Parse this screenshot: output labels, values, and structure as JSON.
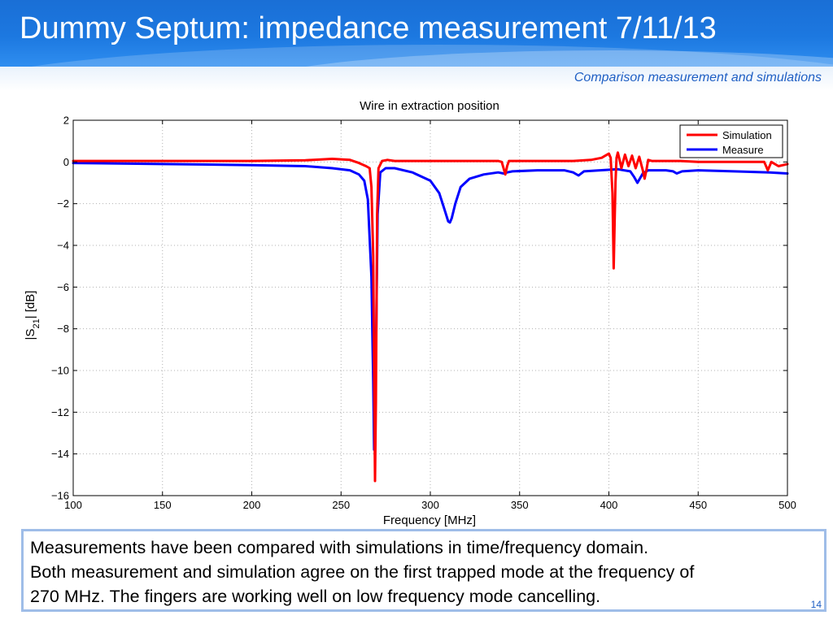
{
  "slide": {
    "title": "Dummy Septum: impedance measurement 7/11/13",
    "subtitle": "Comparison measurement and simulations",
    "text_lines": [
      "Measurements have been compared with simulations in time/frequency domain.",
      "Both measurement and simulation agree on the first trapped mode at the frequency of",
      "270 MHz. The fingers are working well on low frequency mode cancelling."
    ],
    "page_number": "14"
  },
  "colors": {
    "header_blue": "#1c78e0",
    "accent_text": "#1f5fc4",
    "simulation": "#ff0000",
    "measure": "#0000ff"
  },
  "chart_data": {
    "type": "line",
    "title": "Wire in extraction position",
    "xlabel": "Frequency [MHz]",
    "ylabel_main": "|S",
    "ylabel_sub": "21",
    "ylabel_tail": "| [dB]",
    "xlim": [
      100,
      500
    ],
    "ylim": [
      -16,
      2
    ],
    "xticks": [
      100,
      150,
      200,
      250,
      300,
      350,
      400,
      450,
      500
    ],
    "yticks": [
      2,
      0,
      -2,
      -4,
      -6,
      -8,
      -10,
      -12,
      -14,
      -16
    ],
    "ytick_labels": [
      "2",
      "0",
      "−2",
      "−4",
      "−6",
      "−8",
      "−10",
      "−12",
      "−14",
      "−16"
    ],
    "grid": true,
    "legend_position": "top-right",
    "series": [
      {
        "name": "Simulation",
        "color": "#ff0000",
        "x": [
          100,
          150,
          200,
          230,
          245,
          255,
          260,
          264,
          266,
          267,
          268,
          268.7,
          269,
          269.5,
          270.2,
          271,
          273,
          276,
          280,
          300,
          320,
          338,
          340,
          341,
          342,
          343,
          344,
          346,
          360,
          380,
          390,
          396,
          398,
          400,
          401,
          402,
          402.7,
          403.2,
          403.7,
          404.3,
          405,
          406,
          407,
          409,
          411,
          413,
          415,
          417,
          419,
          420,
          421,
          422,
          424,
          430,
          440,
          450,
          460,
          470,
          480,
          487,
          489,
          491,
          495,
          500
        ],
        "y": [
          0.05,
          0.05,
          0.05,
          0.08,
          0.15,
          0.1,
          -0.05,
          -0.2,
          -0.3,
          -1.2,
          -4.5,
          -12,
          -15.3,
          -11.5,
          -2.5,
          -0.3,
          0.05,
          0.1,
          0.05,
          0.05,
          0.05,
          0.05,
          0.0,
          -0.3,
          -0.6,
          -0.2,
          0.05,
          0.05,
          0.05,
          0.05,
          0.1,
          0.2,
          0.3,
          0.4,
          0.2,
          -1.5,
          -5.1,
          -3.0,
          -1.0,
          0.2,
          0.45,
          0.1,
          -0.3,
          0.35,
          -0.2,
          0.3,
          -0.3,
          0.25,
          -0.4,
          -0.8,
          -0.4,
          0.1,
          0.05,
          0.05,
          0.05,
          0.0,
          0.0,
          0.0,
          0.0,
          0.0,
          -0.4,
          0.0,
          -0.2,
          -0.1
        ]
      },
      {
        "name": "Measure",
        "color": "#0000ff",
        "x": [
          100,
          150,
          200,
          230,
          245,
          255,
          260,
          263,
          265,
          267,
          268,
          268.5,
          269,
          269.5,
          270.5,
          272,
          275,
          280,
          290,
          300,
          305,
          308,
          310,
          311,
          312,
          314,
          317,
          322,
          330,
          338,
          341,
          343,
          346,
          360,
          375,
          380,
          381,
          383,
          386,
          395,
          405,
          412,
          414,
          416,
          417,
          419,
          422,
          432,
          436,
          438,
          441,
          450,
          470,
          490,
          500
        ],
        "y": [
          -0.05,
          -0.1,
          -0.15,
          -0.2,
          -0.3,
          -0.4,
          -0.6,
          -0.9,
          -1.8,
          -5.5,
          -10.5,
          -13.8,
          -13.5,
          -9.5,
          -2.5,
          -0.5,
          -0.3,
          -0.3,
          -0.5,
          -0.9,
          -1.5,
          -2.3,
          -2.85,
          -2.9,
          -2.7,
          -2.0,
          -1.2,
          -0.8,
          -0.6,
          -0.5,
          -0.55,
          -0.5,
          -0.45,
          -0.4,
          -0.4,
          -0.5,
          -0.55,
          -0.65,
          -0.45,
          -0.4,
          -0.35,
          -0.45,
          -0.7,
          -1.0,
          -0.85,
          -0.55,
          -0.4,
          -0.4,
          -0.45,
          -0.55,
          -0.45,
          -0.4,
          -0.45,
          -0.5,
          -0.55
        ]
      }
    ]
  }
}
